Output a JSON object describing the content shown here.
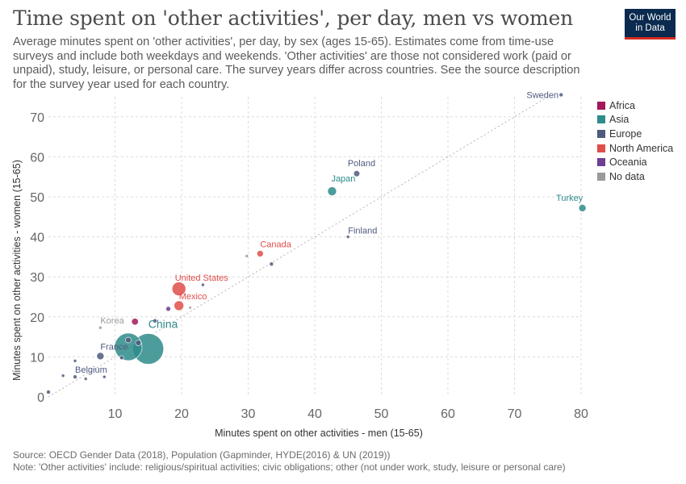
{
  "header": {
    "title": "Time spent on 'other activities', per day, men vs women",
    "subtitle": "Average minutes spent on 'other activities', per day, by sex (ages 15-65). Estimates come from time-use surveys and include both weekdays and weekends. 'Other activities' are those not considered work (paid or unpaid), study, leisure, or personal care. The survey years differ across countries. See the source description for the survey year used for each country.",
    "logo_line1": "Our World",
    "logo_line2": "in Data"
  },
  "footer": {
    "source": "Source: OECD Gender Data (2018), Population (Gapminder, HYDE(2016) & UN (2019))",
    "note": "Note: 'Other activities' include: religious/spiritual activities; civic obligations; other (not under work, study, leisure or personal care)"
  },
  "colors": {
    "Africa": "#a2185b",
    "Asia": "#2e8b8b",
    "Europe": "#4f5a7d",
    "North America": "#e04e4a",
    "Oceania": "#6d3e91",
    "No data": "#9a9a9a"
  },
  "chart_data": {
    "type": "scatter",
    "xlabel": "Minutes spent on other activities - men (15-65)",
    "ylabel": "Minutes spent on other activities - women (15-65)",
    "xlim": [
      0,
      80
    ],
    "ylim": [
      0,
      75
    ],
    "xticks": [
      10,
      20,
      30,
      40,
      50,
      60,
      70,
      80
    ],
    "yticks": [
      0,
      10,
      20,
      30,
      40,
      50,
      60,
      70
    ],
    "grid": true,
    "reference_line": "y = x",
    "legend_position": "right",
    "legend": [
      "Africa",
      "Asia",
      "Europe",
      "North America",
      "Oceania",
      "No data"
    ],
    "points": [
      {
        "label": "Sweden",
        "x": 77,
        "y": 75.5,
        "region": "Europe",
        "r": 2.5
      },
      {
        "label": "Turkey",
        "x": 80.2,
        "y": 47.2,
        "region": "Asia",
        "r": 4.5
      },
      {
        "label": "Poland",
        "x": 46.3,
        "y": 55.8,
        "region": "Europe",
        "r": 3.8
      },
      {
        "label": "Japan",
        "x": 42.6,
        "y": 51.4,
        "region": "Asia",
        "r": 5.5
      },
      {
        "label": "Finland",
        "x": 45,
        "y": 40,
        "region": "Europe",
        "r": 2
      },
      {
        "label": "Canada",
        "x": 31.8,
        "y": 35.8,
        "region": "North America",
        "r": 4
      },
      {
        "label": "",
        "x": 29.8,
        "y": 35.2,
        "region": "No data",
        "r": 2
      },
      {
        "label": "",
        "x": 33.5,
        "y": 33.2,
        "region": "Europe",
        "r": 2.5
      },
      {
        "label": "United States",
        "x": 19.6,
        "y": 27,
        "region": "North America",
        "r": 8.5
      },
      {
        "label": "",
        "x": 23.2,
        "y": 28,
        "region": "Europe",
        "r": 2
      },
      {
        "label": "Mexico",
        "x": 19.6,
        "y": 22.8,
        "region": "North America",
        "r": 6
      },
      {
        "label": "",
        "x": 21.3,
        "y": 22.3,
        "region": "No data",
        "r": 1.8
      },
      {
        "label": "",
        "x": 18,
        "y": 22,
        "region": "Oceania",
        "r": 3
      },
      {
        "label": "Korea",
        "x": 7.8,
        "y": 17.3,
        "region": "No data",
        "r": 2
      },
      {
        "label": "",
        "x": 13,
        "y": 18.8,
        "region": "Africa",
        "r": 4.2
      },
      {
        "label": "",
        "x": 16,
        "y": 19,
        "region": "Oceania",
        "r": 2.5
      },
      {
        "label": "China",
        "x": 15,
        "y": 12,
        "region": "Asia",
        "r": 19
      },
      {
        "label": "",
        "x": 12,
        "y": 12.5,
        "region": "Asia",
        "r": 17
      },
      {
        "label": "",
        "x": 12,
        "y": 14.2,
        "region": "Europe",
        "r": 3.5
      },
      {
        "label": "",
        "x": 13.5,
        "y": 13.5,
        "region": "Europe",
        "r": 3.5
      },
      {
        "label": "France",
        "x": 7.8,
        "y": 10.2,
        "region": "Europe",
        "r": 4.5
      },
      {
        "label": "",
        "x": 11,
        "y": 9.8,
        "region": "Europe",
        "r": 2.5
      },
      {
        "label": "",
        "x": 4,
        "y": 9,
        "region": "Europe",
        "r": 2
      },
      {
        "label": "Belgium",
        "x": 4,
        "y": 5,
        "region": "Europe",
        "r": 2.5
      },
      {
        "label": "",
        "x": 2.2,
        "y": 5.3,
        "region": "Europe",
        "r": 2
      },
      {
        "label": "",
        "x": 5.6,
        "y": 4.5,
        "region": "Europe",
        "r": 2
      },
      {
        "label": "",
        "x": 8.4,
        "y": 5,
        "region": "Europe",
        "r": 2
      },
      {
        "label": "",
        "x": 0,
        "y": 1.2,
        "region": "Europe",
        "r": 2.5
      }
    ]
  }
}
